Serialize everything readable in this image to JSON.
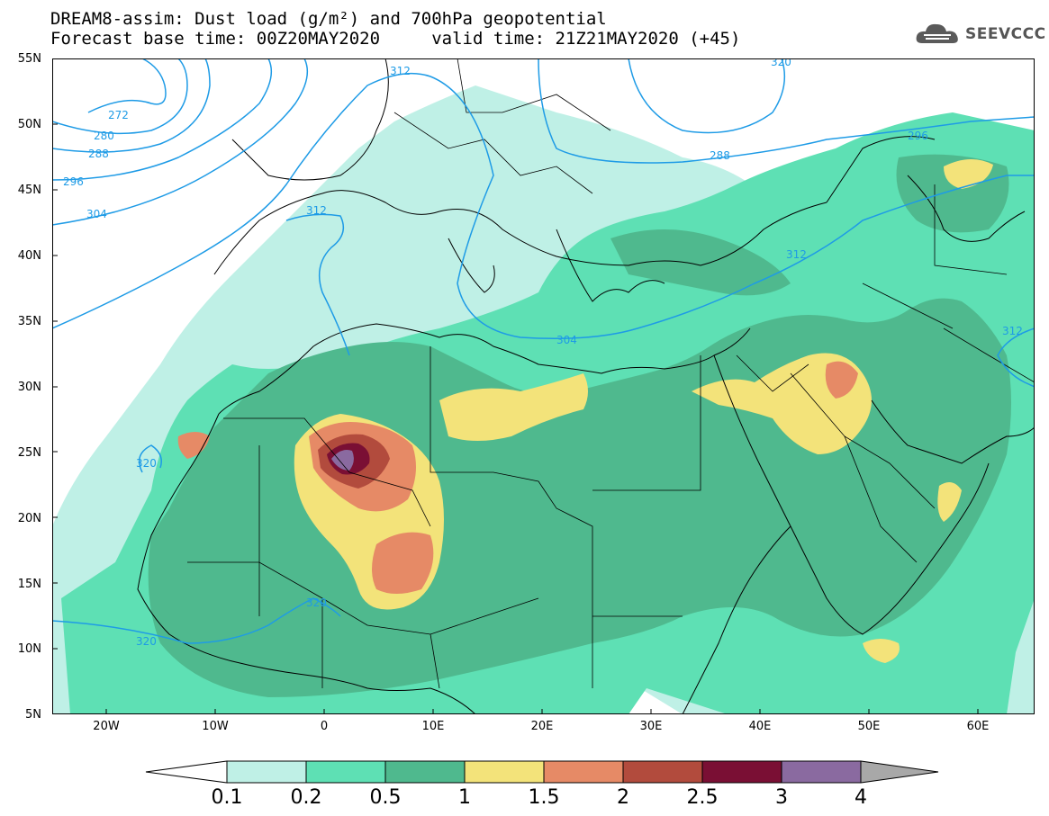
{
  "title": {
    "line1": "DREAM8-assim: Dust load (g/m²) and 700hPa geopotential",
    "line2": "Forecast base time: 00Z20MAY2020     valid time: 21Z21MAY2020 (+45)"
  },
  "logo": {
    "text": "SEEVCCC",
    "icon": "cloud-icon"
  },
  "axes": {
    "lat_labels": [
      "55N",
      "50N",
      "45N",
      "40N",
      "35N",
      "30N",
      "25N",
      "20N",
      "15N",
      "10N",
      "5N"
    ],
    "lon_labels": [
      "20W",
      "10W",
      "0",
      "10E",
      "20E",
      "30E",
      "40E",
      "50E",
      "60E"
    ]
  },
  "contour_labels": [
    "272",
    "280",
    "288",
    "296",
    "304",
    "312",
    "320",
    "288",
    "296",
    "304",
    "312",
    "312",
    "312",
    "320",
    "320",
    "320"
  ],
  "colorbar": {
    "labels": [
      "0.1",
      "0.2",
      "0.5",
      "1",
      "1.5",
      "2",
      "2.5",
      "3",
      "4"
    ],
    "colors": [
      "#bff0e6",
      "#5ee0b4",
      "#4fb98e",
      "#f3e37a",
      "#e68a66",
      "#b24b3d",
      "#7a0f34",
      "#8a6aa0"
    ],
    "low_color": "#ffffff",
    "high_color": "#a8a8a8"
  },
  "palette": {
    "land_line": "#000000",
    "contour": "#1e9be6",
    "c1": "#bff0e6",
    "c2": "#5ee0b4",
    "c3": "#4fb98e",
    "c4": "#f3e37a",
    "c5": "#e68a66",
    "c6": "#b24b3d",
    "c7": "#7a0f34",
    "c8": "#8a6aa0"
  }
}
